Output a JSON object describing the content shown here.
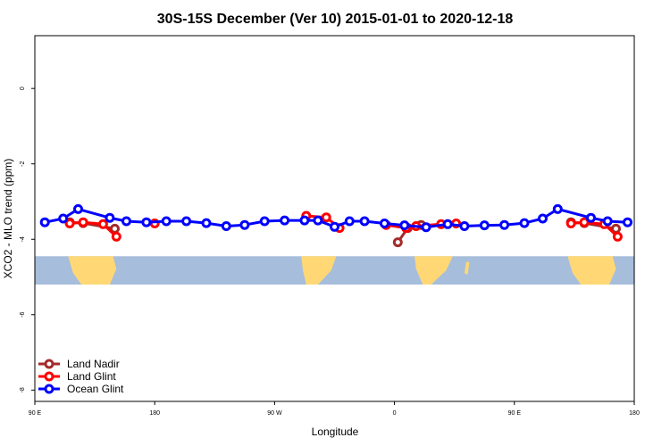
{
  "chart_data": {
    "type": "line",
    "title": "30S-15S December (Ver 10)   2015-01-01 to 2020-12-18",
    "xlabel": "Longitude",
    "ylabel": "XCO2 - MLO trend (ppm)",
    "xlim": [
      90,
      450
    ],
    "ylim": [
      -8.3,
      1.4
    ],
    "x_ticks": [
      {
        "value": 90,
        "label": "90 E"
      },
      {
        "value": 162,
        "label": "180"
      },
      {
        "value": 234,
        "label": "90 W"
      },
      {
        "value": 306,
        "label": "0"
      },
      {
        "value": 378,
        "label": "90 E"
      },
      {
        "value": 450,
        "label": "180"
      }
    ],
    "y_ticks": [
      {
        "value": 0,
        "label": "0"
      },
      {
        "value": -2,
        "label": "-2"
      },
      {
        "value": -4,
        "label": "-4"
      },
      {
        "value": -6,
        "label": "-6"
      },
      {
        "value": -8,
        "label": "-8"
      }
    ],
    "grid": false,
    "legend_position": "bottom-left",
    "map_band": {
      "y_top": -4.45,
      "y_bottom": -5.2,
      "ocean_color": "#a6bddb",
      "land_color": "#ffd875"
    },
    "series": [
      {
        "name": "Land Nadir",
        "color": "#a52a2a",
        "segments": [
          [
            [
              111,
              -3.55
            ],
            [
              119,
              -3.57
            ],
            [
              138,
              -3.72
            ]
          ],
          [
            [
              308,
              -4.08
            ],
            [
              314,
              -3.7
            ],
            [
              322,
              -3.62
            ]
          ],
          [
            [
              412,
              -3.55
            ],
            [
              420,
              -3.57
            ],
            [
              439,
              -3.72
            ]
          ]
        ]
      },
      {
        "name": "Land Glint",
        "color": "#ff0000",
        "segments": [
          [
            [
              111,
              -3.58
            ],
            [
              119,
              -3.55
            ],
            [
              131,
              -3.6
            ],
            [
              139,
              -3.93
            ]
          ],
          [
            [
              162,
              -3.58
            ]
          ],
          [
            [
              253,
              -3.38
            ],
            [
              265,
              -3.42
            ],
            [
              273,
              -3.7
            ]
          ],
          [
            [
              301,
              -3.62
            ],
            [
              313,
              -3.7
            ],
            [
              319,
              -3.65
            ],
            [
              334,
              -3.6
            ],
            [
              343,
              -3.58
            ]
          ],
          [
            [
              412,
              -3.58
            ],
            [
              420,
              -3.55
            ],
            [
              432,
              -3.6
            ],
            [
              440,
              -3.93
            ]
          ]
        ]
      },
      {
        "name": "Ocean Glint",
        "color": "#0000ff",
        "segments": [
          [
            [
              96,
              -3.55
            ],
            [
              107,
              -3.45
            ],
            [
              116,
              -3.2
            ],
            [
              135,
              -3.43
            ],
            [
              145,
              -3.52
            ],
            [
              157,
              -3.55
            ],
            [
              169,
              -3.52
            ],
            [
              181,
              -3.52
            ],
            [
              193,
              -3.57
            ],
            [
              205,
              -3.65
            ],
            [
              216,
              -3.62
            ],
            [
              228,
              -3.52
            ],
            [
              240,
              -3.5
            ],
            [
              252,
              -3.5
            ],
            [
              260,
              -3.5
            ],
            [
              270,
              -3.67
            ],
            [
              279,
              -3.52
            ],
            [
              288,
              -3.52
            ],
            [
              300,
              -3.58
            ],
            [
              312,
              -3.63
            ],
            [
              325,
              -3.68
            ],
            [
              338,
              -3.6
            ],
            [
              348,
              -3.65
            ],
            [
              360,
              -3.63
            ],
            [
              372,
              -3.62
            ],
            [
              384,
              -3.57
            ],
            [
              395,
              -3.45
            ],
            [
              404,
              -3.2
            ],
            [
              424,
              -3.43
            ],
            [
              434,
              -3.52
            ],
            [
              446,
              -3.55
            ]
          ]
        ]
      }
    ]
  }
}
